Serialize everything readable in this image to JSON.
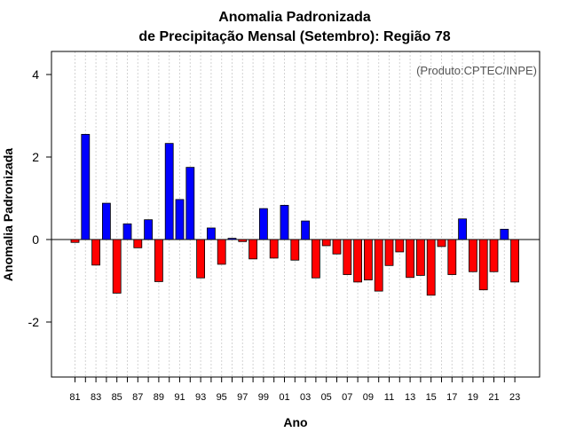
{
  "chart_data": {
    "type": "bar",
    "title": "Anomalia Padronizada",
    "subtitle": "de Precipitação Mensal (Setembro): Região 78",
    "xlabel": "Ano",
    "ylabel": "Anomalia Padronizada",
    "annotation": "(Produto:CPTEC/INPE)",
    "ylim": [
      -3.3,
      4.6
    ],
    "yticks": [
      -2,
      0,
      2,
      4
    ],
    "ytick_labels": [
      "-2",
      "0",
      "2",
      "4"
    ],
    "grid": true,
    "categories": [
      "81",
      "82",
      "83",
      "84",
      "85",
      "86",
      "87",
      "88",
      "89",
      "90",
      "91",
      "92",
      "93",
      "94",
      "95",
      "96",
      "97",
      "98",
      "99",
      "00",
      "01",
      "02",
      "03",
      "04",
      "05",
      "06",
      "07",
      "08",
      "09",
      "10",
      "11",
      "12",
      "13",
      "14",
      "15",
      "16",
      "17",
      "18",
      "19",
      "20",
      "21",
      "22",
      "23"
    ],
    "values": [
      -0.07,
      2.55,
      -0.62,
      0.88,
      -1.3,
      0.38,
      -0.2,
      0.48,
      -1.02,
      2.33,
      0.97,
      1.75,
      -0.93,
      0.28,
      -0.6,
      0.03,
      -0.05,
      -0.47,
      0.75,
      -0.45,
      0.83,
      -0.5,
      0.45,
      -0.93,
      -0.15,
      -0.35,
      -0.85,
      -1.03,
      -0.98,
      -1.25,
      -0.63,
      -0.3,
      -0.92,
      -0.87,
      -1.35,
      -0.17,
      -0.85,
      0.5,
      -0.78,
      -1.22,
      -0.78,
      0.25,
      -1.03
    ],
    "xtick_labels": [
      "81",
      "83",
      "85",
      "87",
      "89",
      "91",
      "93",
      "95",
      "97",
      "99",
      "01",
      "03",
      "05",
      "07",
      "09",
      "11",
      "13",
      "15",
      "17",
      "19",
      "21",
      "23"
    ],
    "colors": {
      "positive": "#0000ff",
      "negative": "#ff0000",
      "outline": "#000000",
      "grid": "#d3d3d3",
      "annotation": "#555555"
    }
  }
}
